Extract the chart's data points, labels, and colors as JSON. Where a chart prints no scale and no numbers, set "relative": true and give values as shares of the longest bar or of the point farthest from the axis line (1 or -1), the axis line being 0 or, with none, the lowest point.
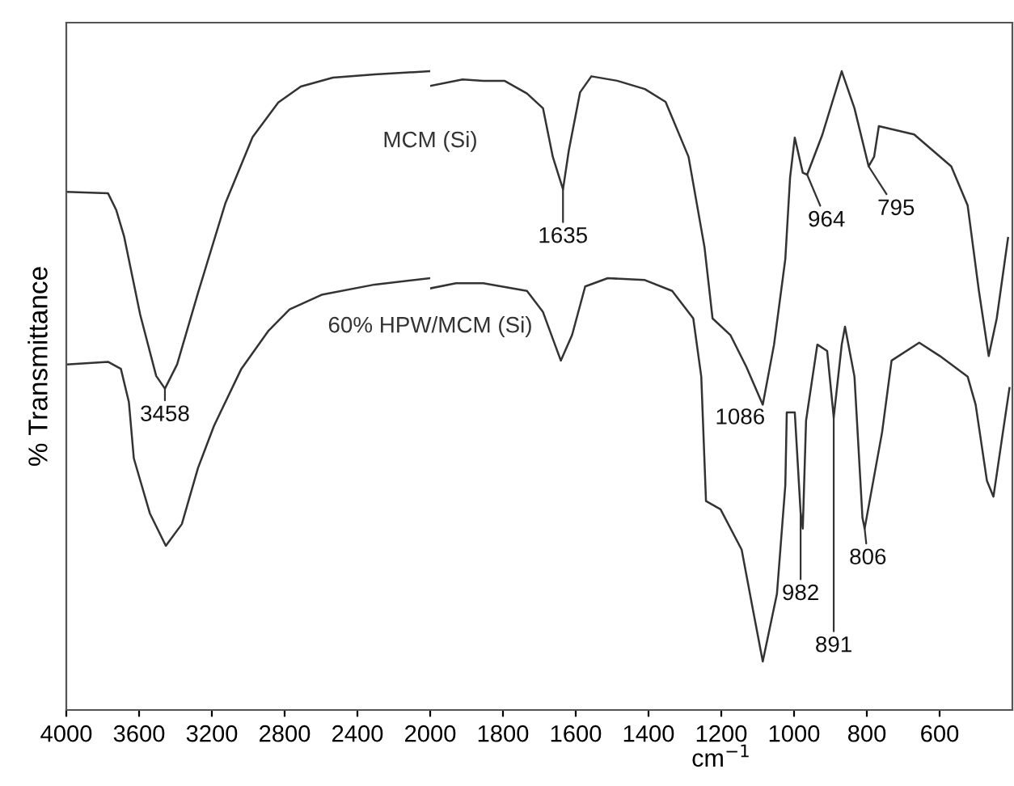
{
  "chart_data": [
    {
      "type": "line",
      "relative": true,
      "ylabel": "% Transmittance",
      "xlim": [
        4000,
        2000
      ],
      "xticks": [
        4000,
        3600,
        3200,
        2800,
        2400,
        2000
      ],
      "grid": false,
      "legend": false,
      "marker": "none",
      "line_style": "solid",
      "tick_labels": "x",
      "series": [
        {
          "name": "MCM (Si)",
          "color": "#333333",
          "x": [
            4000,
            3771,
            3726,
            3682,
            3594,
            3506,
            3458,
            3391,
            3276,
            3126,
            2976,
            2835,
            2711,
            2535,
            2305,
            2000
          ],
          "values": [
            0.811,
            0.809,
            0.783,
            0.741,
            0.619,
            0.523,
            0.503,
            0.541,
            0.653,
            0.793,
            0.897,
            0.951,
            0.976,
            0.99,
            0.995,
            1.0
          ]
        },
        {
          "name": "60% HPW/MCM (Si)",
          "color": "#333333",
          "x": [
            4000,
            3771,
            3700,
            3656,
            3629,
            3541,
            3453,
            3365,
            3276,
            3188,
            3038,
            2888,
            2773,
            2597,
            2305,
            2000
          ],
          "values": [
            0.541,
            0.545,
            0.534,
            0.482,
            0.394,
            0.308,
            0.257,
            0.291,
            0.379,
            0.445,
            0.534,
            0.594,
            0.627,
            0.65,
            0.666,
            0.676
          ]
        }
      ],
      "annotations": [
        {
          "text": "3458",
          "x": 3458,
          "y": 0.503
        }
      ]
    },
    {
      "type": "line",
      "relative": true,
      "xlabel": "cm$^{−1}$",
      "xlim": [
        2000,
        400
      ],
      "xticks": [
        1800,
        1600,
        1400,
        1200,
        1000,
        800,
        600
      ],
      "grid": false,
      "legend": false,
      "marker": "none",
      "line_style": "solid",
      "tick_labels": "x",
      "series": [
        {
          "color": "#333333",
          "x": [
            2000,
            1911,
            1854,
            1796,
            1734,
            1690,
            1663,
            1635,
            1619,
            1588,
            1557,
            1486,
            1410,
            1353,
            1290,
            1246,
            1224,
            1175,
            1131,
            1086,
            1055,
            1024,
            1011,
            998,
            976,
            964,
            922,
            869,
            834,
            795,
            780,
            767,
            670,
            568,
            523,
            492,
            465,
            443,
            412
          ],
          "values": [
            0.977,
            0.987,
            0.985,
            0.985,
            0.965,
            0.942,
            0.866,
            0.815,
            0.876,
            0.967,
            0.992,
            0.985,
            0.972,
            0.952,
            0.866,
            0.724,
            0.613,
            0.587,
            0.537,
            0.478,
            0.572,
            0.706,
            0.833,
            0.896,
            0.841,
            0.838,
            0.901,
            1.0,
            0.942,
            0.851,
            0.866,
            0.914,
            0.901,
            0.851,
            0.79,
            0.656,
            0.554,
            0.613,
            0.739
          ]
        },
        {
          "color": "#333333",
          "x": [
            2000,
            1929,
            1854,
            1734,
            1690,
            1641,
            1610,
            1574,
            1512,
            1410,
            1335,
            1277,
            1255,
            1242,
            1202,
            1144,
            1113,
            1086,
            1047,
            1024,
            1020,
            998,
            982,
            976,
            967,
            936,
            909,
            891,
            869,
            860,
            834,
            812,
            806,
            758,
            732,
            656,
            599,
            523,
            501,
            470,
            452,
            426,
            408
          ],
          "values": [
            0.66,
            0.668,
            0.668,
            0.656,
            0.623,
            0.547,
            0.587,
            0.663,
            0.676,
            0.673,
            0.656,
            0.613,
            0.522,
            0.327,
            0.314,
            0.251,
            0.157,
            0.076,
            0.182,
            0.352,
            0.466,
            0.466,
            0.309,
            0.284,
            0.453,
            0.572,
            0.562,
            0.458,
            0.572,
            0.6,
            0.522,
            0.301,
            0.284,
            0.435,
            0.547,
            0.575,
            0.554,
            0.522,
            0.478,
            0.359,
            0.334,
            0.435,
            0.504
          ]
        }
      ],
      "annotations": [
        {
          "text": "1635",
          "x": 1635,
          "y": 0.815
        },
        {
          "text": "964",
          "x": 964,
          "y": 0.838
        },
        {
          "text": "795",
          "x": 795,
          "y": 0.851
        },
        {
          "text": "1086",
          "x": 1086,
          "y": 0.478
        },
        {
          "text": "982",
          "x": 982,
          "y": 0.309
        },
        {
          "text": "891",
          "x": 891,
          "y": 0.458
        },
        {
          "text": "806",
          "x": 806,
          "y": 0.284
        }
      ]
    }
  ]
}
